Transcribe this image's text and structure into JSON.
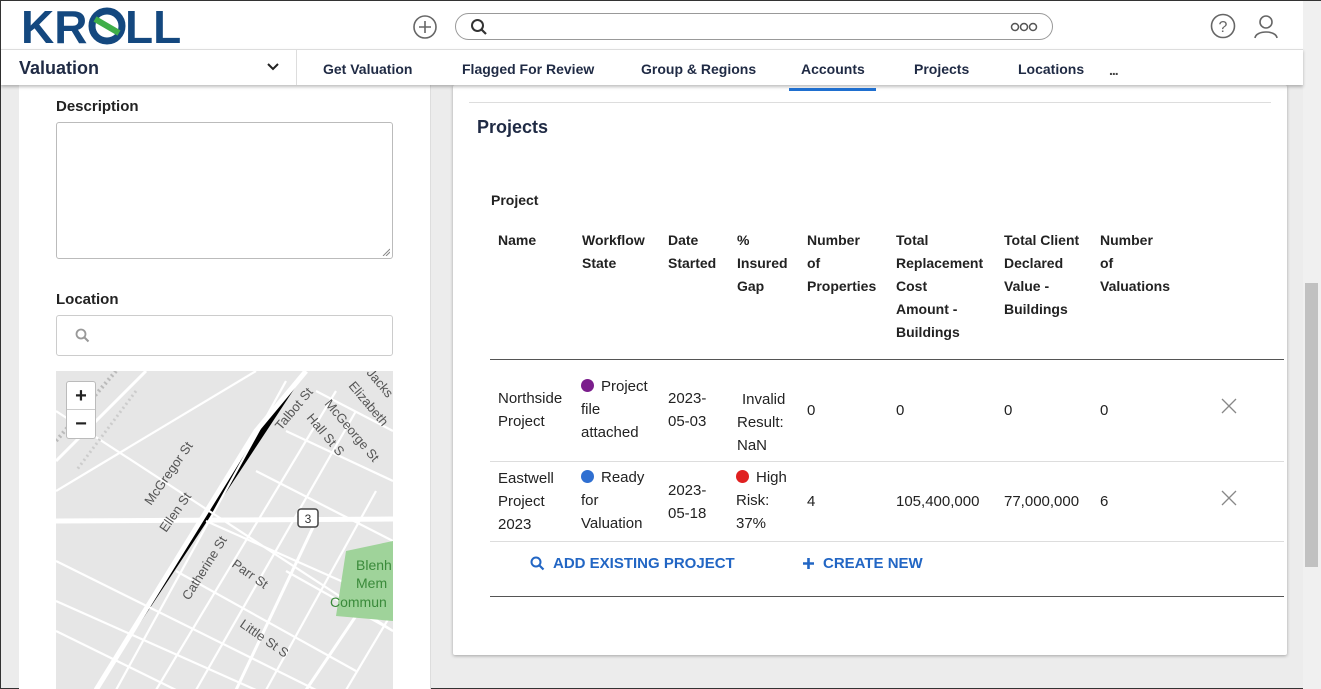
{
  "header": {
    "logo_text": "KROLL",
    "brand_color": "#14487f",
    "more_icon_text": "ooo"
  },
  "nav": {
    "module": "Valuation",
    "tabs": [
      {
        "label": "Get Valuation"
      },
      {
        "label": "Flagged For Review"
      },
      {
        "label": "Group & Regions"
      },
      {
        "label": "Accounts",
        "active": true
      },
      {
        "label": "Projects"
      },
      {
        "label": "Locations"
      }
    ],
    "more": "..."
  },
  "left": {
    "description_label": "Description",
    "description_value": "",
    "location_label": "Location",
    "location_value": "",
    "map": {
      "zoom_in": "+",
      "zoom_out": "−",
      "streets": [
        "McGregor St",
        "Ellen St",
        "Catherine St",
        "Parr St",
        "Little St S",
        "Talbot St",
        "McGeorge St",
        "Hall St S",
        "Elizabeth",
        "Jacks"
      ],
      "route_shield": "3",
      "poi": [
        "Blenh",
        "Mem",
        "Commun"
      ]
    }
  },
  "projects": {
    "title": "Projects",
    "table_caption": "Project",
    "columns": [
      [
        "Name"
      ],
      [
        "Workflow",
        "State"
      ],
      [
        "Date",
        "Started"
      ],
      [
        "%",
        "Insured",
        "Gap"
      ],
      [
        "Number",
        "of",
        "Properties"
      ],
      [
        "Total",
        "Replacement",
        "Cost",
        "Amount -",
        "Buildings"
      ],
      [
        "Total Client",
        "Declared",
        "Value -",
        "Buildings"
      ],
      [
        "Number",
        "of",
        "Valuations"
      ]
    ],
    "rows": [
      {
        "name": [
          "Northside",
          "Project"
        ],
        "workflow": [
          "Project",
          "file",
          "attached"
        ],
        "workflow_color": "#7b1e8c",
        "date": [
          "2023-",
          "05-03"
        ],
        "gap": [
          "Invalid",
          "Result:",
          "NaN"
        ],
        "properties": "0",
        "replacement": "0",
        "declared": "0",
        "valuations": "0"
      },
      {
        "name": [
          "Eastwell",
          "Project",
          "2023"
        ],
        "workflow": [
          "Ready",
          "for",
          "Valuation"
        ],
        "workflow_color": "#2f6fd1",
        "date": [
          "2023-",
          "05-18"
        ],
        "gap": [
          "High",
          "Risk:",
          "37%"
        ],
        "gap_color": "#e02020",
        "properties": "4",
        "replacement": "105,400,000",
        "declared": "77,000,000",
        "valuations": "6"
      }
    ],
    "add_existing": "ADD EXISTING PROJECT",
    "create_new": "CREATE NEW",
    "action_color": "#2266c4"
  }
}
